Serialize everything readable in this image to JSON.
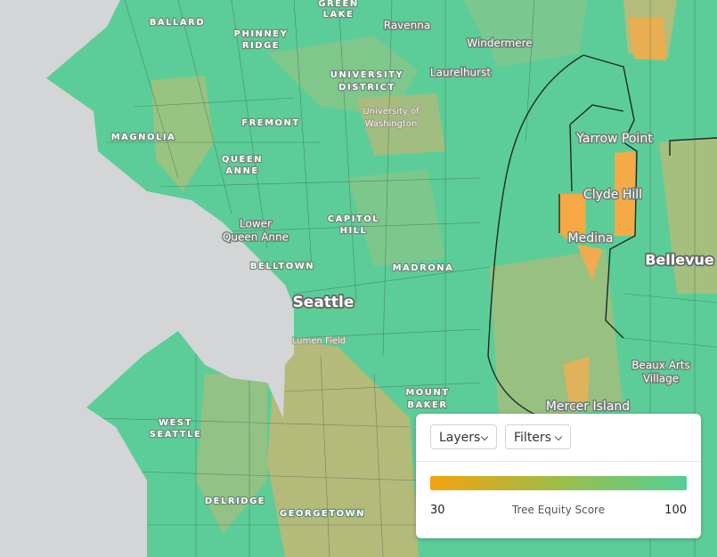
{
  "map": {
    "places": [
      [
        "GREEN",
        "LAKE"
      ],
      [
        "BALLARD"
      ],
      [
        "PHINNEY",
        "RIDGE"
      ],
      [
        "Ravenna"
      ],
      [
        "Windermere"
      ],
      [
        "Laurelhurst"
      ],
      [
        "UNIVERSITY",
        "DISTRICT"
      ],
      [
        "University of",
        "Washington"
      ],
      [
        "FREMONT"
      ],
      [
        "MAGNOLIA"
      ],
      [
        "QUEEN",
        "ANNE"
      ],
      [
        "Yarrow Point"
      ],
      [
        "Clyde Hill"
      ],
      [
        "Medina"
      ],
      [
        "Bellevue"
      ],
      [
        "Lower",
        "Queen Anne"
      ],
      [
        "CAPITOL",
        "HILL"
      ],
      [
        "BELLTOWN"
      ],
      [
        "MADRONA"
      ],
      [
        "Seattle"
      ],
      [
        "Lumen Field"
      ],
      [
        "Beaux Arts",
        "Village"
      ],
      [
        "Mercer Island"
      ],
      [
        "MOUNT",
        "BAKER"
      ],
      [
        "WEST",
        "SEATTLE"
      ],
      [
        "DELRIDGE"
      ],
      [
        "GEORGETOWN"
      ]
    ]
  },
  "legend": {
    "buttons": [
      "Layers",
      "Filters"
    ],
    "min": "30",
    "label": "Tree Equity Score",
    "max": "100"
  }
}
